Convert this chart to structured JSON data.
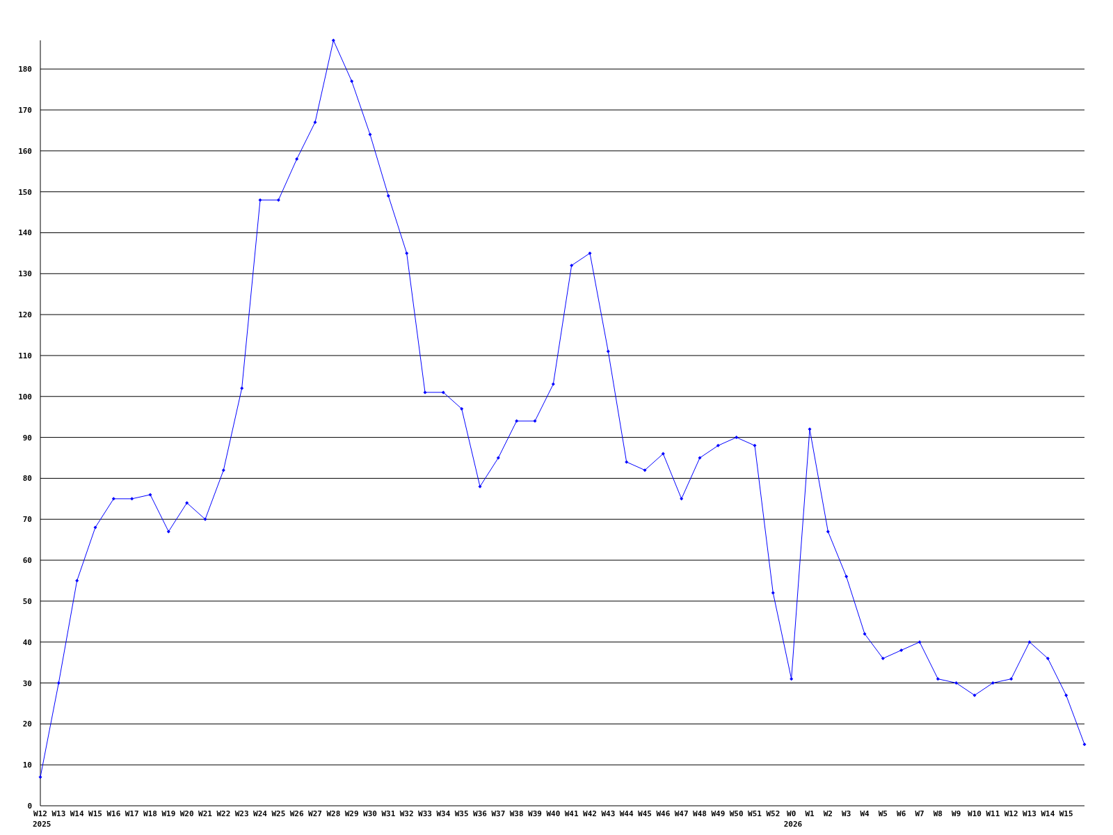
{
  "chart_data": {
    "type": "line",
    "categories": [
      "W12",
      "W13",
      "W14",
      "W15",
      "W16",
      "W17",
      "W18",
      "W19",
      "W20",
      "W21",
      "W22",
      "W23",
      "W24",
      "W25",
      "W26",
      "W27",
      "W28",
      "W29",
      "W30",
      "W31",
      "W32",
      "W33",
      "W34",
      "W35",
      "W36",
      "W37",
      "W38",
      "W39",
      "W40",
      "W41",
      "W42",
      "W43",
      "W44",
      "W45",
      "W46",
      "W47",
      "W48",
      "W49",
      "W50",
      "W51",
      "W52",
      "W0",
      "W1",
      "W2",
      "W3",
      "W4",
      "W5",
      "W6",
      "W7",
      "W8",
      "W9",
      "W10",
      "W11",
      "W12",
      "W13",
      "W14",
      "W15",
      null
    ],
    "series": [
      {
        "color": "#0000ff",
        "values": [
          7,
          30,
          55,
          68,
          75,
          75,
          76,
          67,
          74,
          70,
          82,
          102,
          148,
          148,
          158,
          167,
          187,
          177,
          164,
          149,
          135,
          101,
          101,
          97,
          78,
          85,
          94,
          94,
          103,
          132,
          135,
          111,
          84,
          82,
          86,
          75,
          85,
          88,
          90,
          88,
          52,
          31,
          92,
          67,
          56,
          42,
          36,
          38,
          40,
          31,
          30,
          27,
          30,
          31,
          40,
          36,
          27,
          15
        ]
      }
    ],
    "ylim": [
      0,
      187
    ],
    "yticks": [
      0,
      10,
      20,
      30,
      40,
      50,
      60,
      70,
      80,
      90,
      100,
      110,
      120,
      130,
      140,
      150,
      160,
      170,
      180
    ],
    "grid": "y",
    "marker": "diamond",
    "line_style": "solid",
    "annotations": [
      "2025",
      "2026"
    ]
  }
}
